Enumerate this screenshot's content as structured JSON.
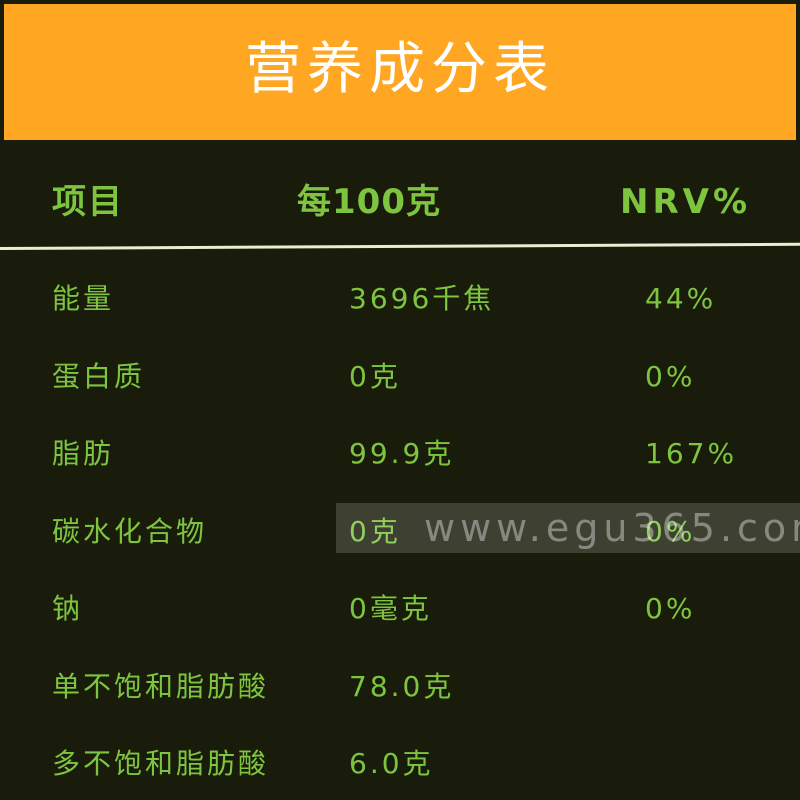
{
  "title": "营养成分表",
  "header": {
    "item": "项目",
    "per100g": "每100克",
    "nrv": "NRV%"
  },
  "rows": [
    {
      "item": "能量",
      "per100g": "3696千焦",
      "nrv": "44%"
    },
    {
      "item": "蛋白质",
      "per100g": "0克",
      "nrv": "0%"
    },
    {
      "item": "脂肪",
      "per100g": "99.9克",
      "nrv": "167%"
    },
    {
      "item": "碳水化合物",
      "per100g": "0克",
      "nrv": "0%"
    },
    {
      "item": "钠",
      "per100g": "0毫克",
      "nrv": "0%"
    },
    {
      "item": "单不饱和脂肪酸",
      "per100g": "78.0克",
      "nrv": ""
    },
    {
      "item": "多不饱和脂肪酸",
      "per100g": "6.0克",
      "nrv": ""
    }
  ],
  "watermark": "www.egu365.com",
  "colors": {
    "title_bar": "#ffa623",
    "background": "#1a1c0b",
    "text_green": "#7ec53f",
    "title_text": "#ffffff"
  }
}
